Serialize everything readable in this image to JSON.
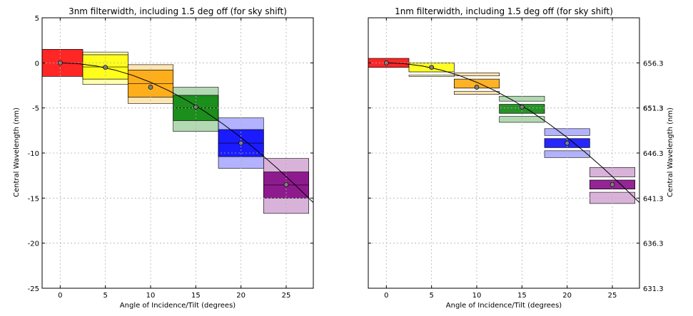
{
  "chart_data": [
    {
      "type": "line",
      "title": "3nm filterwidth, including 1.5 deg off (for sky shift)",
      "xlabel": "Angle of Incidence/Tilt (degrees)",
      "ylabel": "Central Wavelength (nm)",
      "xlim": [
        -2,
        28
      ],
      "ylim": [
        -25,
        5
      ],
      "grid": true,
      "x_ticks": [
        0,
        5,
        10,
        15,
        20,
        25
      ],
      "y_ticks": [
        -25,
        -20,
        -15,
        -10,
        -5,
        0,
        5
      ],
      "curve_points": [
        [
          0,
          0
        ],
        [
          2,
          -0.09
        ],
        [
          4,
          -0.35
        ],
        [
          6,
          -0.78
        ],
        [
          8,
          -1.38
        ],
        [
          10,
          -2.15
        ],
        [
          12,
          -3.08
        ],
        [
          14,
          -4.16
        ],
        [
          16,
          -5.39
        ],
        [
          18,
          -6.77
        ],
        [
          20,
          -8.28
        ],
        [
          22,
          -9.92
        ],
        [
          24,
          -11.68
        ],
        [
          26,
          -13.55
        ],
        [
          28,
          -15.5
        ]
      ],
      "points": [
        [
          0,
          0
        ],
        [
          5,
          -0.5
        ],
        [
          10,
          -2.7
        ],
        [
          15,
          -4.9
        ],
        [
          20,
          -8.9
        ],
        [
          25,
          -13.5
        ]
      ],
      "boxes": [
        {
          "x0": -2,
          "x1": 2.5,
          "y0": -1.5,
          "y1": 1.5,
          "inner0": -1.5,
          "inner1": 1.5,
          "color": "#ff0000",
          "outer0": -1.5,
          "outer1": 1.5
        },
        {
          "x0": 2.5,
          "x1": 7.5,
          "inner0": -1.8,
          "inner1": 0.9,
          "outer0": -2.4,
          "outer1": 1.2,
          "color": "#ffff00"
        },
        {
          "x0": 7.5,
          "x1": 12.5,
          "inner0": -3.8,
          "inner1": -0.8,
          "outer0": -4.5,
          "outer1": -0.2,
          "color": "#ffa500"
        },
        {
          "x0": 12.5,
          "x1": 17.5,
          "inner0": -6.4,
          "inner1": -3.6,
          "outer0": -7.6,
          "outer1": -2.7,
          "color": "#008000"
        },
        {
          "x0": 17.5,
          "x1": 22.5,
          "inner0": -10.4,
          "inner1": -7.4,
          "outer0": -11.7,
          "outer1": -6.1,
          "color": "#0000ff"
        },
        {
          "x0": 22.5,
          "x1": 27.5,
          "inner0": -15.0,
          "inner1": -12.1,
          "outer0": -16.7,
          "outer1": -10.6,
          "color": "#800080"
        }
      ]
    },
    {
      "type": "line",
      "title": "1nm filterwidth, including 1.5 deg off (for sky shift)",
      "xlabel": "Angle of Incidence/Tilt (degrees)",
      "ylabel": "Central Wavelength (nm)",
      "xlim": [
        -2,
        28
      ],
      "ylim": [
        -25,
        5
      ],
      "grid": true,
      "x_ticks": [
        0,
        5,
        10,
        15,
        20,
        25
      ],
      "y_ticks": [
        -25,
        -20,
        -15,
        -10,
        -5,
        0
      ],
      "y_tick_labels_right": [
        "631.3",
        "636.3",
        "641.3",
        "646.3",
        "651.3",
        "656.3"
      ],
      "curve_points": [
        [
          0,
          0
        ],
        [
          2,
          -0.09
        ],
        [
          4,
          -0.35
        ],
        [
          6,
          -0.78
        ],
        [
          8,
          -1.38
        ],
        [
          10,
          -2.15
        ],
        [
          12,
          -3.08
        ],
        [
          14,
          -4.16
        ],
        [
          16,
          -5.39
        ],
        [
          18,
          -6.77
        ],
        [
          20,
          -8.28
        ],
        [
          22,
          -9.92
        ],
        [
          24,
          -11.68
        ],
        [
          26,
          -13.55
        ],
        [
          28,
          -15.5
        ]
      ],
      "points": [
        [
          0,
          0
        ],
        [
          5,
          -0.5
        ],
        [
          10,
          -2.7
        ],
        [
          15,
          -4.9
        ],
        [
          20,
          -8.9
        ],
        [
          25,
          -13.5
        ]
      ],
      "boxes": [
        {
          "x0": -2,
          "x1": 2.5,
          "inner0": -0.5,
          "inner1": 0.5,
          "outer0": -0.5,
          "outer1": 0.5,
          "color": "#ff0000"
        },
        {
          "x0": 2.5,
          "x1": 7.5,
          "inner0": -1.0,
          "inner1": 0.0,
          "outer0": -1.5,
          "outer1": 0.2,
          "color": "#ffff00"
        },
        {
          "x0": 7.5,
          "x1": 12.5,
          "inner0": -2.8,
          "inner1": -1.8,
          "outer0": -3.5,
          "outer1": -1.1,
          "color": "#ffa500"
        },
        {
          "x0": 12.5,
          "x1": 17.5,
          "inner0": -5.6,
          "inner1": -4.6,
          "outer0": -6.6,
          "outer1": -3.7,
          "color": "#008000"
        },
        {
          "x0": 17.5,
          "x1": 22.5,
          "inner0": -9.4,
          "inner1": -8.4,
          "outer0": -10.5,
          "outer1": -7.3,
          "color": "#0000ff"
        },
        {
          "x0": 22.5,
          "x1": 27.5,
          "inner0": -14.0,
          "inner1": -13.0,
          "outer0": -15.6,
          "outer1": -11.6,
          "color": "#800080"
        }
      ]
    }
  ]
}
